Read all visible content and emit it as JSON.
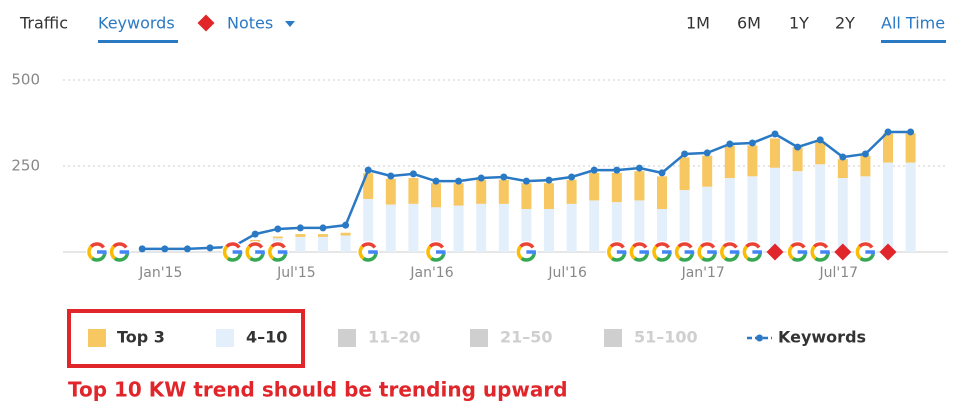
{
  "toolbar": {
    "tabs": [
      "Traffic",
      "Keywords"
    ],
    "notes": "Notes",
    "ranges": [
      "1M",
      "6M",
      "1Y",
      "2Y",
      "All Time"
    ]
  },
  "chart_data": {
    "type": "bar-line",
    "categories": [
      null,
      null,
      null,
      "Jan'15",
      null,
      null,
      null,
      null,
      null,
      "Jul'15",
      null,
      null,
      null,
      null,
      null,
      "Jan'16",
      null,
      null,
      null,
      null,
      null,
      "Jul'16",
      null,
      null,
      null,
      null,
      null,
      "Jan'17",
      null,
      null,
      null,
      null,
      null,
      "Jul'17",
      null,
      null,
      null
    ],
    "series": [
      {
        "name": "Top 3",
        "color": "#f7c761",
        "values": [
          null,
          null,
          null,
          null,
          null,
          null,
          null,
          5,
          5,
          8,
          8,
          8,
          75,
          75,
          75,
          70,
          65,
          70,
          70,
          75,
          75,
          70,
          80,
          85,
          85,
          95,
          95,
          90,
          95,
          90,
          85,
          70,
          65,
          55,
          60,
          85,
          85
        ]
      },
      {
        "name": "4–10",
        "color": "#e3f0fb",
        "values": [
          null,
          null,
          null,
          null,
          null,
          null,
          null,
          30,
          40,
          44,
          44,
          48,
          154,
          138,
          140,
          130,
          135,
          140,
          140,
          125,
          125,
          140,
          150,
          145,
          150,
          125,
          180,
          190,
          215,
          220,
          245,
          235,
          255,
          215,
          220,
          260,
          260
        ]
      },
      {
        "name": "Keywords",
        "color": "#2a79c4",
        "values": [
          null,
          null,
          9,
          9,
          9,
          12,
          15,
          52,
          67,
          70,
          70,
          78,
          238,
          221,
          227,
          206,
          206,
          215,
          218,
          206,
          209,
          218,
          238,
          238,
          244,
          230,
          285,
          288,
          314,
          317,
          343,
          305,
          326,
          276,
          285,
          349,
          349
        ]
      }
    ],
    "inactive_series": [
      {
        "name": "11–20",
        "color": "#cfcfcf"
      },
      {
        "name": "21–50",
        "color": "#cfcfcf"
      },
      {
        "name": "51–100",
        "color": "#cfcfcf"
      }
    ],
    "ylim": [
      0,
      500
    ],
    "yticks": [
      250,
      500
    ],
    "grid": true,
    "annotation": "Top 10 KW trend should be trending upward"
  }
}
